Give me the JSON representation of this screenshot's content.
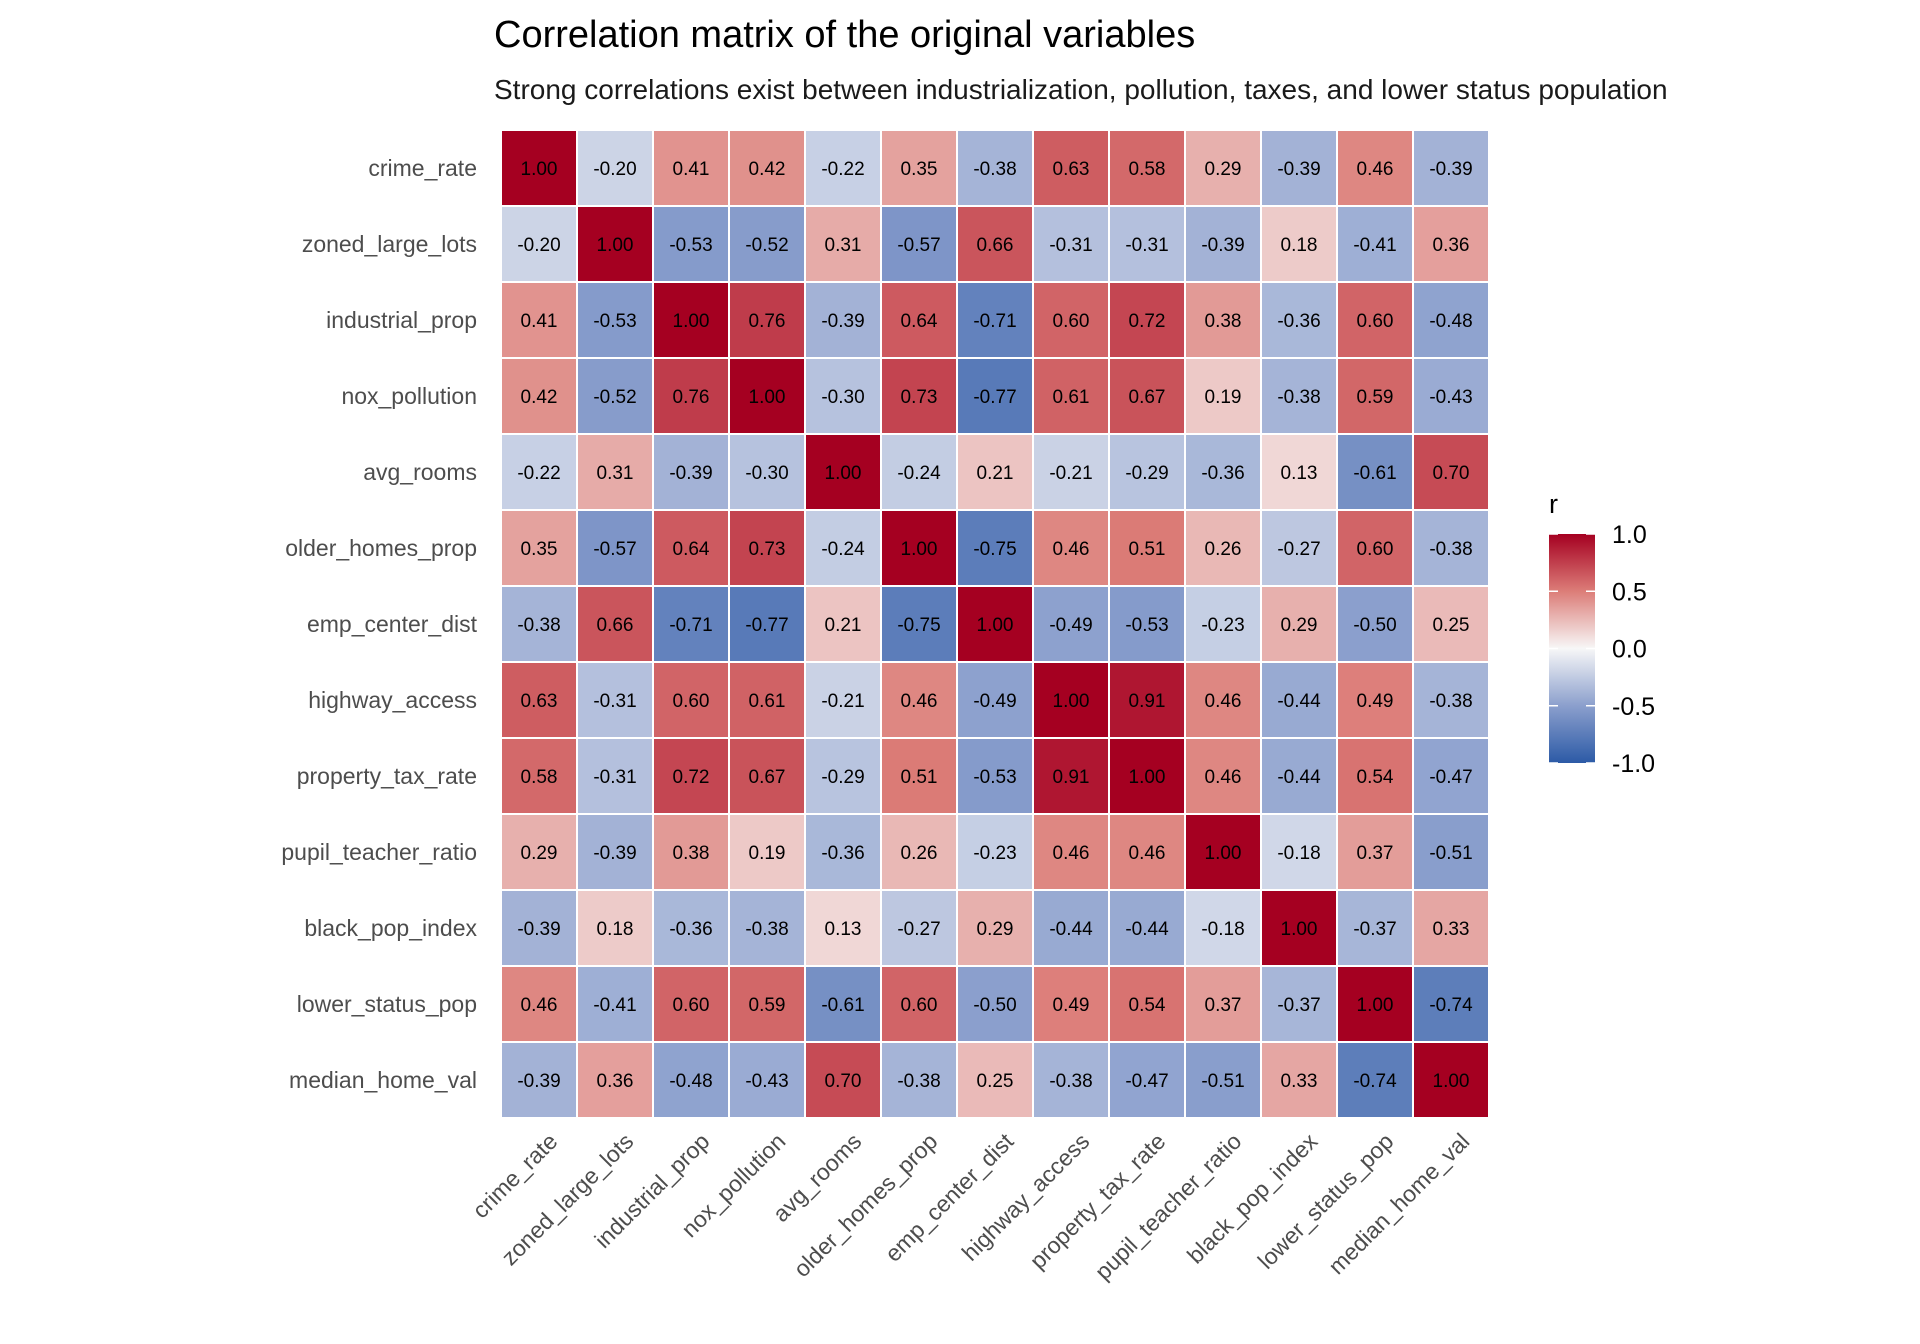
{
  "chart_data": {
    "type": "heatmap",
    "title": "Correlation matrix of the original variables",
    "subtitle": "Strong correlations exist between industrialization, pollution, taxes, and lower status population",
    "xlabel": "",
    "ylabel": "",
    "variables": [
      "crime_rate",
      "zoned_large_lots",
      "industrial_prop",
      "nox_pollution",
      "avg_rooms",
      "older_homes_prop",
      "emp_center_dist",
      "highway_access",
      "property_tax_rate",
      "pupil_teacher_ratio",
      "black_pop_index",
      "lower_status_pop",
      "median_home_val"
    ],
    "matrix": [
      [
        1.0,
        -0.2,
        0.41,
        0.42,
        -0.22,
        0.35,
        -0.38,
        0.63,
        0.58,
        0.29,
        -0.39,
        0.46,
        -0.39
      ],
      [
        -0.2,
        1.0,
        -0.53,
        -0.52,
        0.31,
        -0.57,
        0.66,
        -0.31,
        -0.31,
        -0.39,
        0.18,
        -0.41,
        0.36
      ],
      [
        0.41,
        -0.53,
        1.0,
        0.76,
        -0.39,
        0.64,
        -0.71,
        0.6,
        0.72,
        0.38,
        -0.36,
        0.6,
        -0.48
      ],
      [
        0.42,
        -0.52,
        0.76,
        1.0,
        -0.3,
        0.73,
        -0.77,
        0.61,
        0.67,
        0.19,
        -0.38,
        0.59,
        -0.43
      ],
      [
        -0.22,
        0.31,
        -0.39,
        -0.3,
        1.0,
        -0.24,
        0.21,
        -0.21,
        -0.29,
        -0.36,
        0.13,
        -0.61,
        0.7
      ],
      [
        0.35,
        -0.57,
        0.64,
        0.73,
        -0.24,
        1.0,
        -0.75,
        0.46,
        0.51,
        0.26,
        -0.27,
        0.6,
        -0.38
      ],
      [
        -0.38,
        0.66,
        -0.71,
        -0.77,
        0.21,
        -0.75,
        1.0,
        -0.49,
        -0.53,
        -0.23,
        0.29,
        -0.5,
        0.25
      ],
      [
        0.63,
        -0.31,
        0.6,
        0.61,
        -0.21,
        0.46,
        -0.49,
        1.0,
        0.91,
        0.46,
        -0.44,
        0.49,
        -0.38
      ],
      [
        0.58,
        -0.31,
        0.72,
        0.67,
        -0.29,
        0.51,
        -0.53,
        0.91,
        1.0,
        0.46,
        -0.44,
        0.54,
        -0.47
      ],
      [
        0.29,
        -0.39,
        0.38,
        0.19,
        -0.36,
        0.26,
        -0.23,
        0.46,
        0.46,
        1.0,
        -0.18,
        0.37,
        -0.51
      ],
      [
        -0.39,
        0.18,
        -0.36,
        -0.38,
        0.13,
        -0.27,
        0.29,
        -0.44,
        -0.44,
        -0.18,
        1.0,
        -0.37,
        0.33
      ],
      [
        0.46,
        -0.41,
        0.6,
        0.59,
        -0.61,
        0.6,
        -0.5,
        0.49,
        0.54,
        0.37,
        -0.37,
        1.0,
        -0.74
      ],
      [
        -0.39,
        0.36,
        -0.48,
        -0.43,
        0.7,
        -0.38,
        0.25,
        -0.38,
        -0.47,
        -0.51,
        0.33,
        -0.74,
        1.0
      ]
    ],
    "value_format_decimals": 2,
    "color_scale": {
      "name": "r",
      "range": [
        -1.0,
        1.0
      ],
      "stops": [
        {
          "value": -1.0,
          "color": "#2c5aa6"
        },
        {
          "value": -0.5,
          "color": "#8b9fcd"
        },
        {
          "value": 0.0,
          "color": "#f7f7f7"
        },
        {
          "value": 0.5,
          "color": "#dc7d78"
        },
        {
          "value": 1.0,
          "color": "#a50021"
        }
      ],
      "ticks": [
        1.0,
        0.5,
        0.0,
        -0.5,
        -1.0
      ],
      "tick_labels": [
        "1.0",
        "0.5",
        "0.0",
        "-0.5",
        "-1.0"
      ]
    },
    "legend": {
      "title": "r",
      "placement": "right"
    },
    "grid": false
  }
}
